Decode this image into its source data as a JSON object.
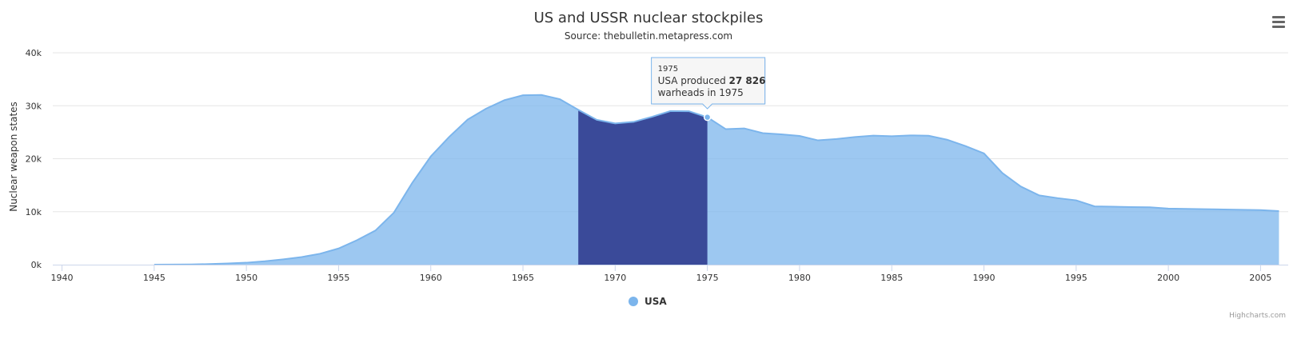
{
  "chart_data": {
    "type": "area",
    "title": "US and USSR nuclear stockpiles",
    "subtitle": "Source: thebulletin.metapress.com",
    "ylabel": "Nuclear weapon states",
    "xlabel": "",
    "xlim": [
      1939.5,
      2006.5
    ],
    "ylim": [
      0,
      40000
    ],
    "x_ticks": [
      1940,
      1945,
      1950,
      1955,
      1960,
      1965,
      1970,
      1975,
      1980,
      1985,
      1990,
      1995,
      2000,
      2005
    ],
    "y_ticks": [
      {
        "value": 0,
        "label": "0k"
      },
      {
        "value": 10000,
        "label": "10k"
      },
      {
        "value": 20000,
        "label": "20k"
      },
      {
        "value": 30000,
        "label": "30k"
      },
      {
        "value": 40000,
        "label": "40k"
      }
    ],
    "grid": true,
    "legend": "bottom-center",
    "series": [
      {
        "name": "USA",
        "color": "#7cb5ec",
        "start_year": 1940,
        "values": [
          null,
          null,
          null,
          null,
          null,
          6,
          11,
          32,
          110,
          235,
          369,
          640,
          1005,
          1436,
          2063,
          3057,
          4618,
          6444,
          9822,
          15468,
          20434,
          24126,
          27387,
          29459,
          31056,
          31982,
          32040,
          31233,
          29224,
          27342,
          26662,
          26956,
          27912,
          28999,
          28965,
          27826,
          25579,
          25722,
          24826,
          24605,
          24304,
          23464,
          23708,
          24099,
          24357,
          24237,
          24401,
          24344,
          23586,
          22380,
          21004,
          17287,
          14747,
          13076,
          12555,
          12144,
          11009,
          10950,
          10871,
          10824,
          10577,
          10527,
          10475,
          10421,
          10358,
          10295,
          10104
        ]
      }
    ],
    "plot_band": {
      "from": 1968,
      "to": 1975,
      "color": "#3a4a99"
    },
    "tooltip": {
      "year": "1975",
      "prefix": "USA produced",
      "value": "27 826",
      "suffix": "warheads in 1975",
      "color": "#7cb5ec"
    },
    "credits": "Highcharts.com"
  }
}
